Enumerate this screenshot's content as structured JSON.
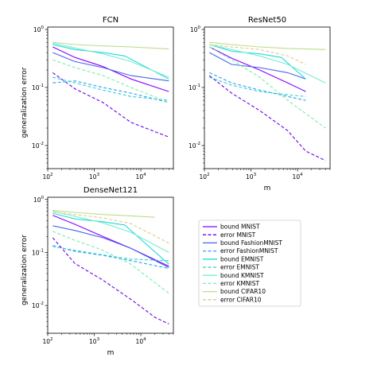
{
  "legend": {
    "entries": [
      {
        "label": "bound MNIST",
        "color": "#8a00ff",
        "dash": "solid"
      },
      {
        "label": "error MNIST",
        "color": "#6a00f0",
        "dash": "dashed"
      },
      {
        "label": "bound FashionMNIST",
        "color": "#4466ee",
        "dash": "solid"
      },
      {
        "label": "error FashionMNIST",
        "color": "#2aa2f0",
        "dash": "dashed"
      },
      {
        "label": "bound EMNIST",
        "color": "#22d8e0",
        "dash": "solid"
      },
      {
        "label": "error EMNIST",
        "color": "#33ccd8",
        "dash": "dashed"
      },
      {
        "label": "bound KMNIST",
        "color": "#77eecc",
        "dash": "solid"
      },
      {
        "label": "error KMNIST",
        "color": "#77eeaa",
        "dash": "dashed"
      },
      {
        "label": "bound CIFAR10",
        "color": "#bbdd88",
        "dash": "solid"
      },
      {
        "label": "error CIFAR10",
        "color": "#ddcc88",
        "dash": "dashed"
      }
    ]
  },
  "chart_data": [
    {
      "type": "line",
      "title": "FCN",
      "xlabel": "",
      "ylabel": "generalization error",
      "xscale": "log",
      "yscale": "log",
      "xlim": [
        100,
        50000
      ],
      "ylim": [
        0.004,
        1.1
      ],
      "xticks": [
        "10^2",
        "10^3",
        "10^4"
      ],
      "yticks": [
        "10^0",
        "10^-1",
        "10^-2"
      ],
      "series": [
        {
          "name": "bound MNIST",
          "x": [
            128,
            384,
            1536,
            6144,
            40000
          ],
          "y": [
            0.5,
            0.33,
            0.23,
            0.14,
            0.085
          ]
        },
        {
          "name": "error MNIST",
          "x": [
            128,
            384,
            1536,
            6144,
            40000
          ],
          "y": [
            0.18,
            0.095,
            0.055,
            0.025,
            0.014
          ]
        },
        {
          "name": "bound FashionMNIST",
          "x": [
            128,
            384,
            1536,
            6144,
            40000
          ],
          "y": [
            0.4,
            0.28,
            0.22,
            0.16,
            0.13
          ]
        },
        {
          "name": "error FashionMNIST",
          "x": [
            128,
            384,
            1536,
            6144,
            40000
          ],
          "y": [
            0.12,
            0.13,
            0.1,
            0.08,
            0.055
          ]
        },
        {
          "name": "bound EMNIST",
          "x": [
            128,
            384,
            1536,
            4500,
            40000
          ],
          "y": [
            0.55,
            0.45,
            0.4,
            0.35,
            0.14
          ]
        },
        {
          "name": "error EMNIST",
          "x": [
            128,
            384,
            1536,
            6144,
            40000
          ],
          "y": [
            0.15,
            0.12,
            0.09,
            0.07,
            0.06
          ]
        },
        {
          "name": "bound KMNIST",
          "x": [
            128,
            384,
            1536,
            6144,
            40000
          ],
          "y": [
            0.58,
            0.48,
            0.38,
            0.28,
            0.15
          ]
        },
        {
          "name": "error KMNIST",
          "x": [
            128,
            384,
            1536,
            6144,
            40000
          ],
          "y": [
            0.3,
            0.22,
            0.16,
            0.1,
            0.055
          ]
        },
        {
          "name": "bound CIFAR10",
          "x": [
            128,
            384,
            1536,
            6144,
            40000
          ],
          "y": [
            0.6,
            0.55,
            0.52,
            0.5,
            0.46
          ]
        },
        {
          "name": "error CIFAR10",
          "x": [],
          "y": []
        }
      ]
    },
    {
      "type": "line",
      "title": "ResNet50",
      "xlabel": "m",
      "ylabel": "",
      "xscale": "log",
      "yscale": "log",
      "xlim": [
        100,
        50000
      ],
      "ylim": [
        0.004,
        1.1
      ],
      "xticks": [
        "10^2",
        "10^3",
        "10^4"
      ],
      "yticks": [
        "10^0",
        "10^-1",
        "10^-2"
      ],
      "series": [
        {
          "name": "bound MNIST",
          "x": [
            128,
            384,
            1536,
            6144,
            15000
          ],
          "y": [
            0.5,
            0.32,
            0.2,
            0.12,
            0.085
          ]
        },
        {
          "name": "error MNIST",
          "x": [
            128,
            384,
            1536,
            6144,
            15000,
            40000
          ],
          "y": [
            0.16,
            0.08,
            0.04,
            0.018,
            0.008,
            0.0055
          ]
        },
        {
          "name": "bound FashionMNIST",
          "x": [
            128,
            384,
            1536,
            6144,
            15000
          ],
          "y": [
            0.4,
            0.25,
            0.22,
            0.18,
            0.14
          ]
        },
        {
          "name": "error FashionMNIST",
          "x": [
            128,
            384,
            1536,
            6144,
            15000
          ],
          "y": [
            0.18,
            0.12,
            0.09,
            0.07,
            0.06
          ]
        },
        {
          "name": "bound EMNIST",
          "x": [
            128,
            384,
            1536,
            4500,
            15000
          ],
          "y": [
            0.55,
            0.42,
            0.38,
            0.33,
            0.14
          ]
        },
        {
          "name": "error EMNIST",
          "x": [
            128,
            384,
            1536,
            6144,
            15000
          ],
          "y": [
            0.15,
            0.11,
            0.085,
            0.075,
            0.07
          ]
        },
        {
          "name": "bound KMNIST",
          "x": [
            128,
            384,
            1536,
            6144,
            40000
          ],
          "y": [
            0.55,
            0.45,
            0.35,
            0.25,
            0.12
          ]
        },
        {
          "name": "error KMNIST",
          "x": [
            128,
            384,
            1536,
            6144,
            40000
          ],
          "y": [
            0.5,
            0.3,
            0.15,
            0.06,
            0.02
          ]
        },
        {
          "name": "bound CIFAR10",
          "x": [
            128,
            384,
            1536,
            6144,
            40000
          ],
          "y": [
            0.6,
            0.55,
            0.5,
            0.47,
            0.45
          ]
        },
        {
          "name": "error CIFAR10",
          "x": [
            128,
            384,
            1536,
            6144,
            15000
          ],
          "y": [
            0.55,
            0.5,
            0.45,
            0.35,
            0.25
          ]
        }
      ]
    },
    {
      "type": "line",
      "title": "DenseNet121",
      "xlabel": "m",
      "ylabel": "generalization error",
      "xscale": "log",
      "yscale": "log",
      "xlim": [
        100,
        50000
      ],
      "ylim": [
        0.003,
        1.1
      ],
      "xticks": [
        "10^2",
        "10^3",
        "10^4"
      ],
      "yticks": [
        "10^0",
        "10^-1",
        "10^-2"
      ],
      "series": [
        {
          "name": "bound MNIST",
          "x": [
            128,
            384,
            1536,
            6144,
            40000
          ],
          "y": [
            0.5,
            0.34,
            0.2,
            0.12,
            0.055
          ]
        },
        {
          "name": "error MNIST",
          "x": [
            128,
            384,
            1536,
            6144,
            20000,
            40000
          ],
          "y": [
            0.19,
            0.062,
            0.03,
            0.013,
            0.006,
            0.0045
          ]
        },
        {
          "name": "bound FashionMNIST",
          "x": [
            128,
            384,
            1536,
            6144,
            40000
          ],
          "y": [
            0.32,
            0.26,
            0.19,
            0.12,
            0.052
          ]
        },
        {
          "name": "error FashionMNIST",
          "x": [
            128,
            384,
            1536,
            6144,
            40000
          ],
          "y": [
            0.135,
            0.105,
            0.088,
            0.07,
            0.05
          ]
        },
        {
          "name": "bound EMNIST",
          "x": [
            128,
            384,
            1536,
            4500,
            40000
          ],
          "y": [
            0.55,
            0.43,
            0.38,
            0.33,
            0.06
          ]
        },
        {
          "name": "error EMNIST",
          "x": [
            128,
            384,
            1536,
            6144,
            40000
          ],
          "y": [
            0.13,
            0.11,
            0.09,
            0.075,
            0.07
          ]
        },
        {
          "name": "bound KMNIST",
          "x": [
            128,
            384,
            1536,
            6144,
            40000
          ],
          "y": [
            0.6,
            0.48,
            0.36,
            0.24,
            0.1
          ]
        },
        {
          "name": "error KMNIST",
          "x": [
            128,
            384,
            1536,
            6144,
            40000
          ],
          "y": [
            0.25,
            0.17,
            0.11,
            0.06,
            0.017
          ]
        },
        {
          "name": "bound CIFAR10",
          "x": [
            128,
            384,
            1536,
            6144,
            20000
          ],
          "y": [
            0.62,
            0.57,
            0.52,
            0.49,
            0.46
          ]
        },
        {
          "name": "error CIFAR10",
          "x": [
            128,
            384,
            1536,
            6144,
            40000
          ],
          "y": [
            0.58,
            0.52,
            0.45,
            0.35,
            0.15
          ]
        }
      ]
    }
  ]
}
